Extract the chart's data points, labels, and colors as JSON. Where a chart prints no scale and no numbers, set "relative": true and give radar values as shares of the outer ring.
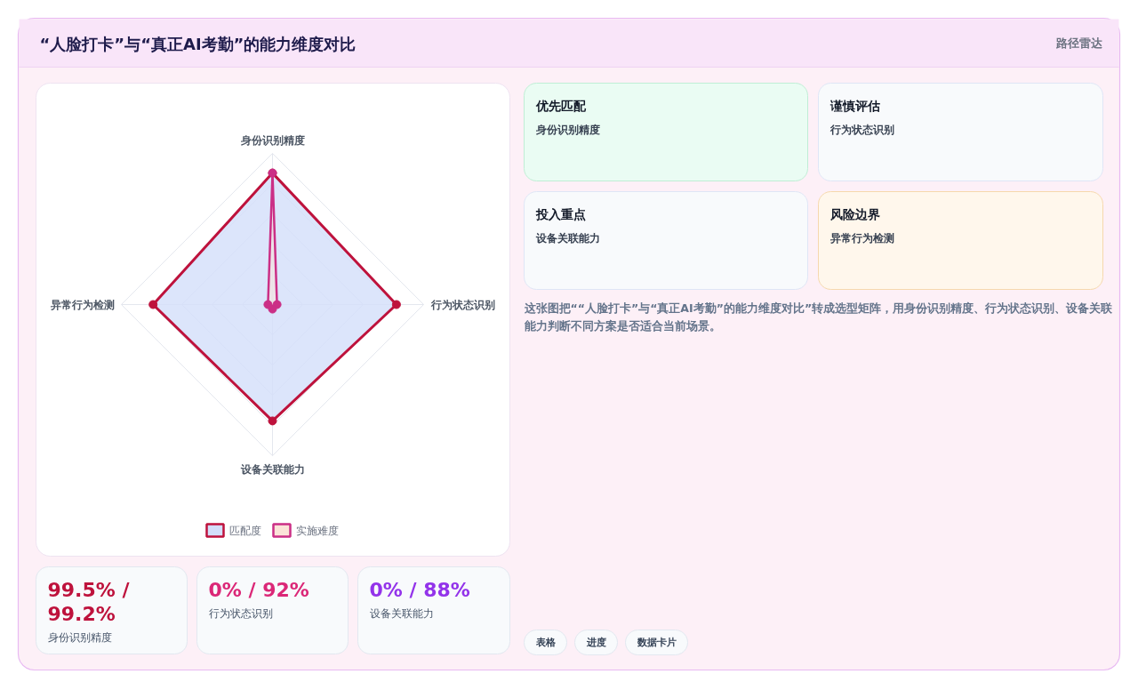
{
  "chart_data": {
    "type": "radar",
    "title": "“人脸打卡”与“真正AI考勤”的能力维度对比",
    "categories": [
      "身份识别精度",
      "行为状态识别",
      "设备关联能力",
      "异常行为检测"
    ],
    "series": [
      {
        "name": "匹配度",
        "color": "#be123c",
        "values": [
          0.87,
          0.82,
          0.77,
          0.79
        ]
      },
      {
        "name": "实施难度",
        "color": "#cb2f86",
        "values": [
          0.87,
          0.03,
          0.03,
          0.03
        ]
      }
    ],
    "relative": true,
    "grid": true,
    "legend": "bottom",
    "marker": "circle",
    "annotations": [
      "路径雷达",
      "优先匹配",
      "身份识别精度",
      "谨慎评估",
      "行为状态识别",
      "投入重点",
      "设备关联能力",
      "风险边界",
      "异常行为检测",
      "这张图把““人脸打卡”与“真正AI考勤”的能力维度对比”转成选型矩阵，用身份识别精度、行为状态识别、设备关联能力判断不同方案是否适合当前场景。",
      "99.5% / 99.2%",
      "身份识别精度",
      "0% / 92%",
      "行为状态识别",
      "0% / 88%",
      "设备关联能力",
      "表格",
      "进度",
      "数据卡片"
    ]
  }
}
